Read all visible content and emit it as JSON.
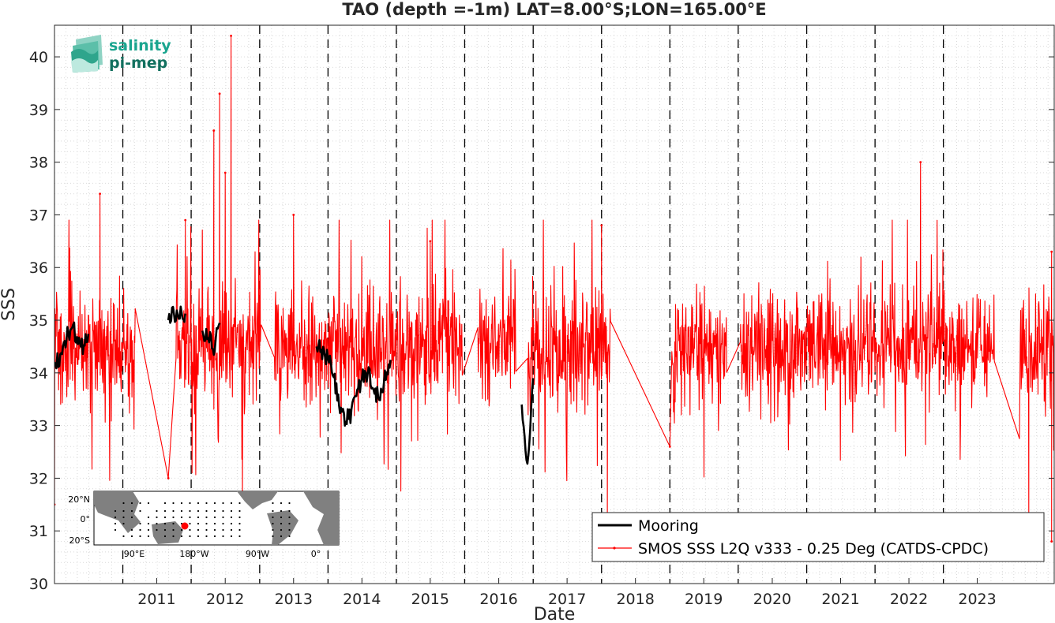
{
  "chart_data": {
    "type": "line",
    "title": "TAO (depth =-1m) LAT=8.00°S;LON=165.00°E",
    "xlabel": "Date",
    "ylabel": "SSS",
    "xlim": [
      "2010-01-01",
      "2024-08-15"
    ],
    "ylim": [
      30,
      40.6
    ],
    "x_ticks": [
      "2011",
      "2012",
      "2013",
      "2014",
      "2015",
      "2016",
      "2017",
      "2018",
      "2019",
      "2020",
      "2021",
      "2022",
      "2023"
    ],
    "y_ticks": [
      "30",
      "31",
      "32",
      "33",
      "34",
      "35",
      "36",
      "37",
      "38",
      "39",
      "40"
    ],
    "year_boundaries_dashed": true,
    "grid": "minor-dotted",
    "legend": {
      "placement": "bottom-right"
    },
    "series": [
      {
        "name": "Mooring",
        "color": "#000000",
        "segments": [
          {
            "x": [
              "2010-01-01",
              "2010-02-01",
              "2010-03-01",
              "2010-04-01",
              "2010-05-01",
              "2010-06-01",
              "2010-07-01"
            ],
            "y": [
              34.2,
              34.3,
              34.6,
              34.9,
              34.7,
              34.5,
              34.8
            ]
          },
          {
            "x": [
              "2011-09-01",
              "2011-10-01",
              "2011-11-01",
              "2011-12-01"
            ],
            "y": [
              35.0,
              35.1,
              35.2,
              35.1
            ]
          },
          {
            "x": [
              "2012-03-01",
              "2012-04-01",
              "2012-05-01",
              "2012-06-01"
            ],
            "y": [
              34.8,
              34.7,
              34.5,
              34.9
            ]
          },
          {
            "x": [
              "2013-11-01",
              "2013-12-01",
              "2014-01-01",
              "2014-02-01",
              "2014-03-01",
              "2014-04-01",
              "2014-05-01",
              "2014-06-01",
              "2014-07-01",
              "2014-08-01",
              "2014-09-01",
              "2014-10-01",
              "2014-11-01",
              "2014-12-01"
            ],
            "y": [
              34.5,
              34.4,
              34.3,
              33.9,
              33.4,
              33.1,
              33.2,
              33.6,
              33.9,
              34.0,
              33.7,
              33.5,
              33.9,
              34.3
            ]
          },
          {
            "x": [
              "2016-11-01",
              "2016-12-01",
              "2017-01-01"
            ],
            "y": [
              33.4,
              32.3,
              33.8
            ]
          }
        ]
      },
      {
        "name": "SMOS SSS L2Q v333 - 0.25 Deg (CATDS-CPDC)",
        "color": "#ff0000",
        "mean": 34.5,
        "range": [
          30.8,
          40.4
        ],
        "peaks": [
          {
            "x": "2010-09-01",
            "y": 37.4
          },
          {
            "x": "2011-12-01",
            "y": 36.9
          },
          {
            "x": "2012-05-01",
            "y": 38.6
          },
          {
            "x": "2012-06-01",
            "y": 39.3
          },
          {
            "x": "2012-08-01",
            "y": 40.4
          },
          {
            "x": "2012-07-01",
            "y": 37.8
          },
          {
            "x": "2013-07-01",
            "y": 37.0
          },
          {
            "x": "2015-07-01",
            "y": 36.5
          },
          {
            "x": "2018-01-01",
            "y": 36.8
          },
          {
            "x": "2022-09-01",
            "y": 38.0
          },
          {
            "x": "2024-08-01",
            "y": 36.3
          }
        ],
        "troughs": [
          {
            "x": "2010-01-01",
            "y": 31.5
          },
          {
            "x": "2011-09-01",
            "y": 32.0
          },
          {
            "x": "2012-10-01",
            "y": 31.5
          },
          {
            "x": "2018-02-01",
            "y": 31.1
          },
          {
            "x": "2019-01-01",
            "y": 32.6
          },
          {
            "x": "2024-04-01",
            "y": 31.1
          },
          {
            "x": "2024-08-01",
            "y": 30.8
          }
        ]
      }
    ]
  },
  "logo": {
    "line1": "salinity",
    "line2": "pi-mep"
  },
  "inset_map": {
    "y_labels": [
      "20°N",
      "0°",
      "20°S"
    ],
    "x_labels": [
      "90°E",
      "180°W",
      "90°W",
      "0°"
    ],
    "marker_color": "#ff0000"
  }
}
